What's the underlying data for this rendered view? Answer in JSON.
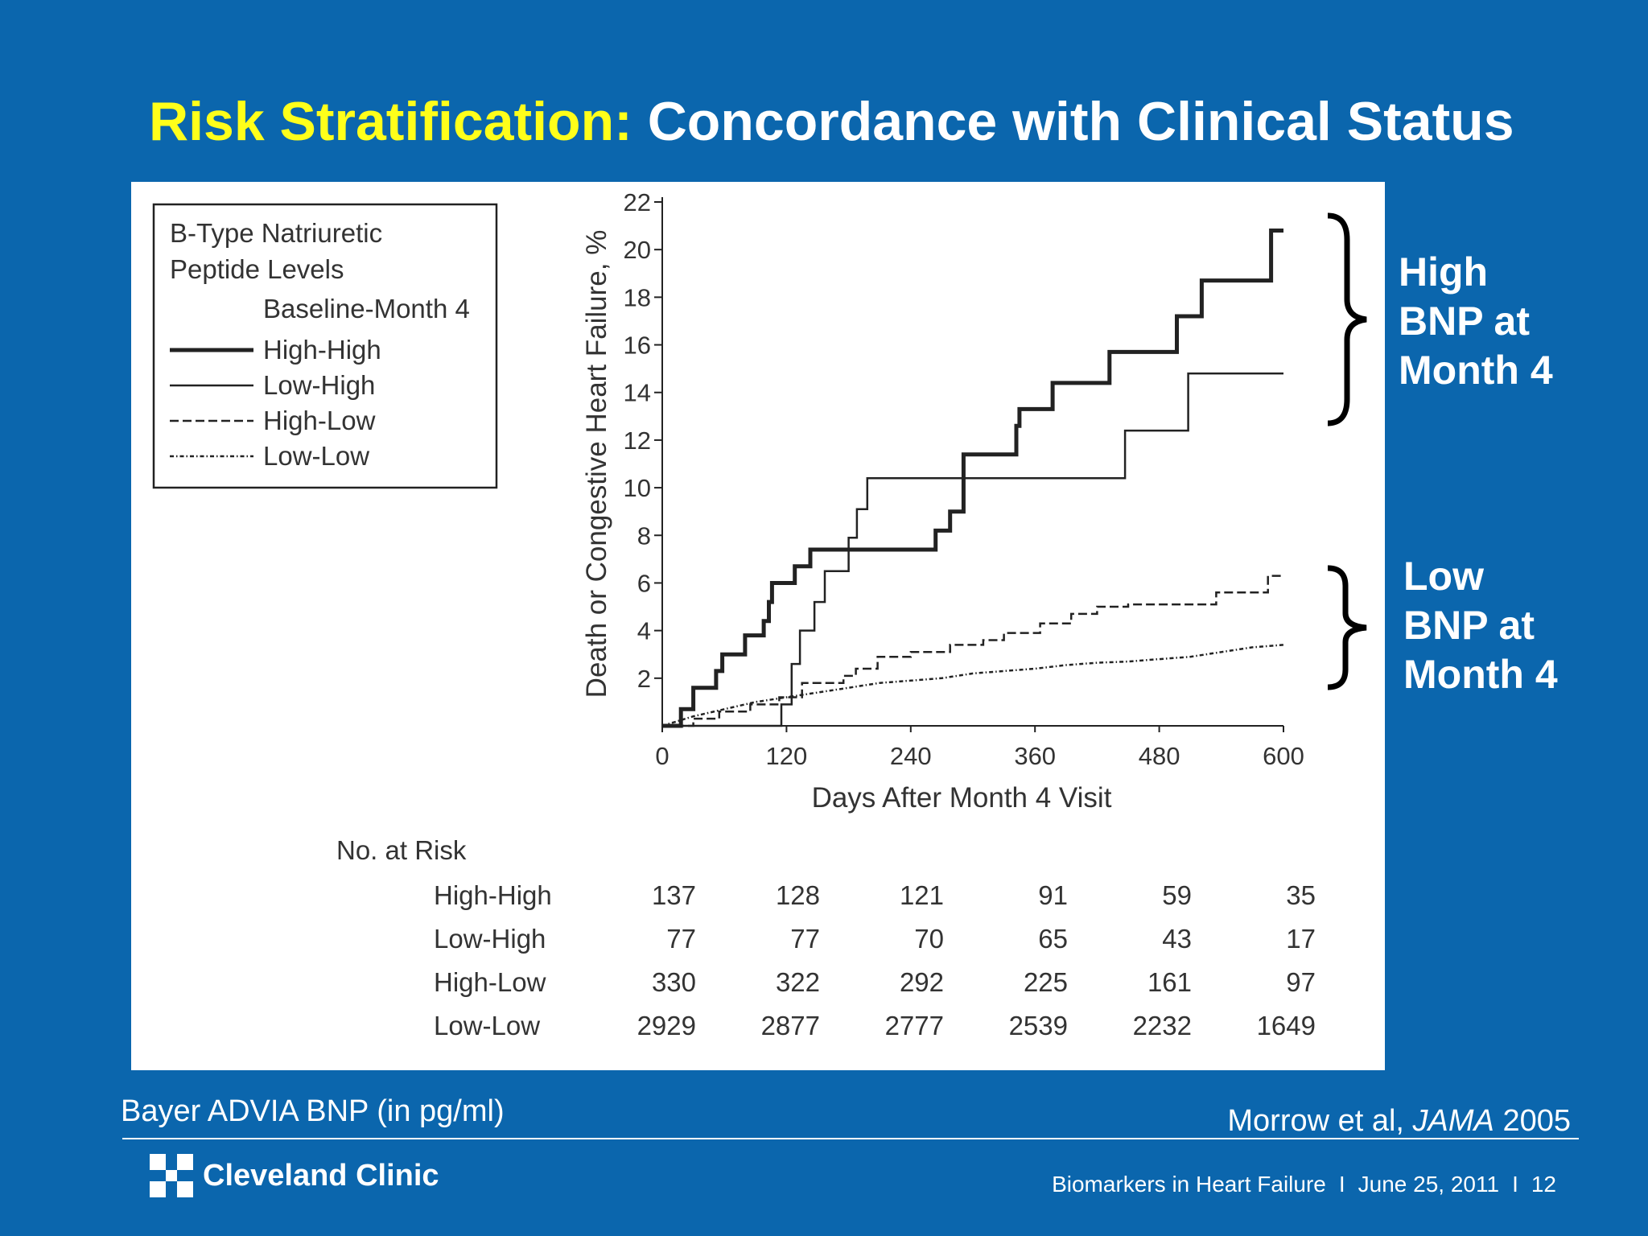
{
  "slide": {
    "title_part1": "Risk Stratification:",
    "title_part2": "Concordance with Clinical Status",
    "high_label": "High\nBNP at\nMonth 4",
    "low_label": "Low\nBNP at\nMonth 4",
    "source_left": "Bayer ADVIA BNP (in pg/ml)",
    "citation_authors": "Morrow et al, ",
    "citation_journal": "JAMA",
    "citation_year": " 2005",
    "logo_text": "Cleveland Clinic",
    "footer_topic": "Biomarkers in Heart Failure",
    "footer_date": "June 25, 2011",
    "footer_page": "12",
    "footer_sep": "I"
  },
  "chart_data": {
    "type": "line",
    "step": true,
    "xlabel": "Days After Month 4 Visit",
    "ylabel": "Death or Congestive Heart Failure, %",
    "xlim": [
      0,
      600
    ],
    "ylim": [
      0,
      22
    ],
    "xticks": [
      0,
      120,
      240,
      360,
      480,
      600
    ],
    "yticks": [
      2,
      4,
      6,
      8,
      10,
      12,
      14,
      16,
      18,
      20,
      22
    ],
    "legend": {
      "title_line1": "B-Type Natriuretic",
      "title_line2": "Peptide Levels",
      "subtitle": "Baseline-Month 4",
      "placement": "top-left"
    },
    "series": [
      {
        "name": "High-High",
        "style": "thick-solid",
        "points": [
          [
            0,
            0
          ],
          [
            18,
            0
          ],
          [
            18,
            0.7
          ],
          [
            30,
            0.7
          ],
          [
            30,
            1.6
          ],
          [
            52,
            1.6
          ],
          [
            52,
            2.3
          ],
          [
            58,
            2.3
          ],
          [
            58,
            3
          ],
          [
            80,
            3
          ],
          [
            80,
            3.8
          ],
          [
            98,
            3.8
          ],
          [
            98,
            4.4
          ],
          [
            103,
            4.4
          ],
          [
            103,
            5.2
          ],
          [
            106,
            5.2
          ],
          [
            106,
            6
          ],
          [
            128,
            6
          ],
          [
            128,
            6.7
          ],
          [
            143,
            6.7
          ],
          [
            143,
            7.4
          ],
          [
            264,
            7.4
          ],
          [
            264,
            8.2
          ],
          [
            278,
            8.2
          ],
          [
            278,
            9
          ],
          [
            291,
            9
          ],
          [
            291,
            11.4
          ],
          [
            342,
            11.4
          ],
          [
            342,
            12.6
          ],
          [
            345,
            12.6
          ],
          [
            345,
            13.3
          ],
          [
            377,
            13.3
          ],
          [
            377,
            14.4
          ],
          [
            432,
            14.4
          ],
          [
            432,
            15.7
          ],
          [
            497,
            15.7
          ],
          [
            497,
            17.2
          ],
          [
            521,
            17.2
          ],
          [
            521,
            18.7
          ],
          [
            588,
            18.7
          ],
          [
            588,
            20.8
          ],
          [
            600,
            20.8
          ]
        ]
      },
      {
        "name": "Low-High",
        "style": "thin-solid",
        "points": [
          [
            0,
            0
          ],
          [
            115,
            0
          ],
          [
            115,
            0.9
          ],
          [
            125,
            0.9
          ],
          [
            125,
            2.6
          ],
          [
            133,
            2.6
          ],
          [
            133,
            4
          ],
          [
            147,
            4
          ],
          [
            147,
            5.2
          ],
          [
            157,
            5.2
          ],
          [
            157,
            6.5
          ],
          [
            180,
            6.5
          ],
          [
            180,
            7.9
          ],
          [
            188,
            7.9
          ],
          [
            188,
            9.1
          ],
          [
            198,
            9.1
          ],
          [
            198,
            10.4
          ],
          [
            447,
            10.4
          ],
          [
            447,
            12.4
          ],
          [
            508,
            12.4
          ],
          [
            508,
            14.8
          ],
          [
            600,
            14.8
          ]
        ]
      },
      {
        "name": "High-Low",
        "style": "dashed",
        "points": [
          [
            0,
            0
          ],
          [
            30,
            0
          ],
          [
            30,
            0.3
          ],
          [
            55,
            0.3
          ],
          [
            55,
            0.6
          ],
          [
            85,
            0.6
          ],
          [
            85,
            0.9
          ],
          [
            113,
            0.9
          ],
          [
            113,
            1.2
          ],
          [
            135,
            1.2
          ],
          [
            135,
            1.8
          ],
          [
            175,
            1.8
          ],
          [
            175,
            2.1
          ],
          [
            187,
            2.1
          ],
          [
            187,
            2.4
          ],
          [
            208,
            2.4
          ],
          [
            208,
            2.9
          ],
          [
            240,
            2.9
          ],
          [
            240,
            3.1
          ],
          [
            278,
            3.1
          ],
          [
            278,
            3.4
          ],
          [
            310,
            3.4
          ],
          [
            310,
            3.6
          ],
          [
            330,
            3.6
          ],
          [
            330,
            3.9
          ],
          [
            365,
            3.9
          ],
          [
            365,
            4.3
          ],
          [
            395,
            4.3
          ],
          [
            395,
            4.7
          ],
          [
            420,
            4.7
          ],
          [
            420,
            5
          ],
          [
            450,
            5
          ],
          [
            450,
            5.1
          ],
          [
            535,
            5.1
          ],
          [
            535,
            5.6
          ],
          [
            585,
            5.6
          ],
          [
            585,
            6.3
          ],
          [
            600,
            6.3
          ]
        ]
      },
      {
        "name": "Low-Low",
        "style": "dash-dot",
        "points": [
          [
            0,
            0
          ],
          [
            30,
            0.4
          ],
          [
            60,
            0.7
          ],
          [
            90,
            1.0
          ],
          [
            120,
            1.2
          ],
          [
            150,
            1.4
          ],
          [
            180,
            1.6
          ],
          [
            210,
            1.8
          ],
          [
            240,
            1.9
          ],
          [
            270,
            2.0
          ],
          [
            300,
            2.2
          ],
          [
            330,
            2.3
          ],
          [
            360,
            2.4
          ],
          [
            390,
            2.55
          ],
          [
            420,
            2.65
          ],
          [
            450,
            2.7
          ],
          [
            480,
            2.8
          ],
          [
            510,
            2.9
          ],
          [
            540,
            3.1
          ],
          [
            570,
            3.3
          ],
          [
            600,
            3.4
          ]
        ]
      }
    ],
    "at_risk": {
      "header": "No. at Risk",
      "rows": [
        {
          "label": "High-High",
          "values": [
            137,
            128,
            121,
            91,
            59,
            35
          ]
        },
        {
          "label": "Low-High",
          "values": [
            77,
            77,
            70,
            65,
            43,
            17
          ]
        },
        {
          "label": "High-Low",
          "values": [
            330,
            322,
            292,
            225,
            161,
            97
          ]
        },
        {
          "label": "Low-Low",
          "values": [
            2929,
            2877,
            2777,
            2539,
            2232,
            1649
          ]
        }
      ]
    }
  }
}
